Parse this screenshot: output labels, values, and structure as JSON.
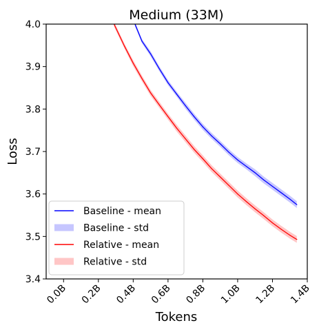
{
  "chart_data": {
    "type": "line",
    "title": "Medium (33M)",
    "xlabel": "Tokens",
    "ylabel": "Loss",
    "xlim": [
      -0.1,
      1.4
    ],
    "ylim": [
      3.4,
      4.0
    ],
    "x_ticks": [
      0.0,
      0.2,
      0.4,
      0.6,
      0.8,
      1.0,
      1.2,
      1.4
    ],
    "x_tick_labels": [
      "0.0B",
      "0.2B",
      "0.4B",
      "0.6B",
      "0.8B",
      "1.0B",
      "1.2B",
      "1.4B"
    ],
    "y_ticks": [
      3.4,
      3.5,
      3.6,
      3.7,
      3.8,
      3.9,
      4.0
    ],
    "y_tick_labels": [
      "3.4",
      "3.5",
      "3.6",
      "3.7",
      "3.8",
      "3.9",
      "4.0"
    ],
    "grid": false,
    "legend_position": "lower-left",
    "legend": [
      {
        "label": "Baseline - mean",
        "kind": "line",
        "color": "#0000ff"
      },
      {
        "label": "Baseline - std",
        "kind": "band",
        "color": "#c6c6ff"
      },
      {
        "label": "Relative - mean",
        "kind": "line",
        "color": "#ff0000"
      },
      {
        "label": "Relative - std",
        "kind": "band",
        "color": "#ffc6c6"
      }
    ],
    "series": [
      {
        "name": "Baseline - mean",
        "color": "#0000ff",
        "band_color": "#c6c6ff",
        "x": [
          0.41,
          0.45,
          0.5,
          0.55,
          0.6,
          0.65,
          0.7,
          0.75,
          0.8,
          0.85,
          0.9,
          0.95,
          1.0,
          1.05,
          1.1,
          1.15,
          1.2,
          1.25,
          1.3,
          1.34
        ],
        "y": [
          4.0,
          3.96,
          3.93,
          3.895,
          3.862,
          3.835,
          3.808,
          3.782,
          3.758,
          3.737,
          3.718,
          3.698,
          3.68,
          3.665,
          3.65,
          3.633,
          3.618,
          3.603,
          3.588,
          3.575
        ],
        "std": [
          0.005,
          0.005,
          0.006,
          0.006,
          0.006,
          0.006,
          0.007,
          0.007,
          0.007,
          0.007,
          0.007,
          0.007,
          0.007,
          0.007,
          0.008,
          0.008,
          0.008,
          0.008,
          0.008,
          0.008
        ]
      },
      {
        "name": "Relative - mean",
        "color": "#ff0000",
        "band_color": "#ffc6c6",
        "x": [
          0.29,
          0.35,
          0.4,
          0.45,
          0.5,
          0.55,
          0.6,
          0.65,
          0.7,
          0.75,
          0.8,
          0.85,
          0.9,
          0.95,
          1.0,
          1.05,
          1.1,
          1.15,
          1.2,
          1.25,
          1.3,
          1.34
        ],
        "y": [
          4.0,
          3.948,
          3.908,
          3.872,
          3.838,
          3.81,
          3.782,
          3.755,
          3.73,
          3.705,
          3.683,
          3.66,
          3.64,
          3.62,
          3.6,
          3.582,
          3.565,
          3.549,
          3.532,
          3.517,
          3.503,
          3.493
        ],
        "std": [
          0.006,
          0.006,
          0.007,
          0.007,
          0.007,
          0.007,
          0.007,
          0.008,
          0.008,
          0.008,
          0.008,
          0.008,
          0.008,
          0.008,
          0.008,
          0.008,
          0.008,
          0.008,
          0.008,
          0.008,
          0.008,
          0.008
        ]
      }
    ]
  }
}
